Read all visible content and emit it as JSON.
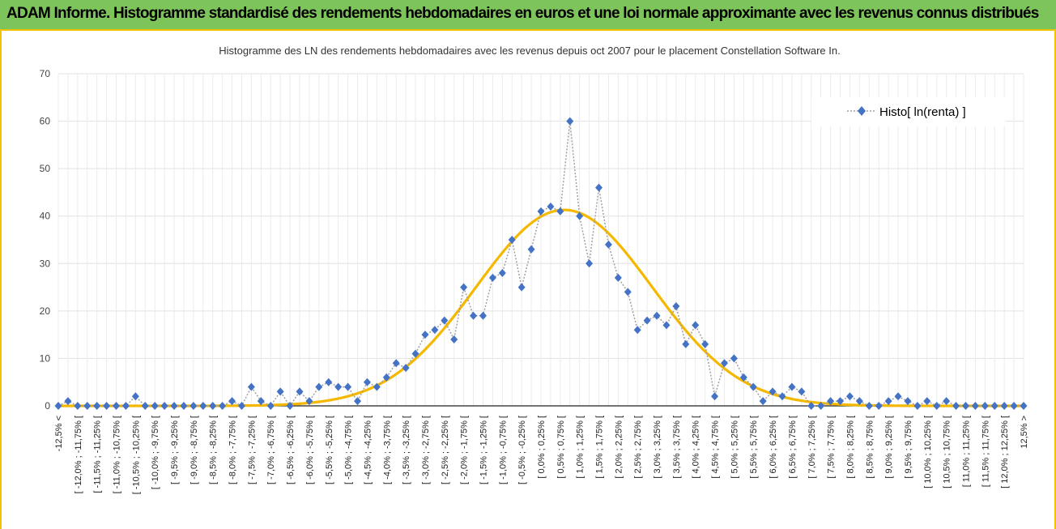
{
  "banner": {
    "title": "ADAM Informe. Histogramme standardisé des rendements hebdomadaires en euros et une loi normale approximante avec les revenus connus distribués",
    "color": "#7dc45a"
  },
  "chart_data": {
    "type": "line",
    "title": "Histogramme des LN des rendements hebdomadaires avec les revenus depuis oct 2007 pour le placement Constellation Software In.",
    "xlabel": "",
    "ylabel": "",
    "ylim": [
      0,
      70
    ],
    "yticks": [
      0,
      10,
      20,
      30,
      40,
      50,
      60,
      70
    ],
    "grid": true,
    "legend_position": "top-right",
    "categories": [
      "-12,5% <",
      "[ -12,25% ; -12,0% [",
      "[ -12,0% ; -11,75% [",
      "[ -11,75% ; -11,5% [",
      "[ -11,5% ; -11,25% [",
      "[ -11,25% ; -11,0% [",
      "[ -11,0% ; -10,75% [",
      "[ -10,75% ; -10,5% [",
      "[ -10,5% ; -10,25% [",
      "[ -10,25% ; -10,0% [",
      "[ -10,0% ; -9,75% [",
      "[ -9,75% ; -9,5% [",
      "[ -9,5% ; -9,25% [",
      "[ -9,25% ; -9,0% [",
      "[ -9,0% ; -8,75% [",
      "[ -8,75% ; -8,5% [",
      "[ -8,5% ; -8,25% [",
      "[ -8,25% ; -8,0% [",
      "[ -8,0% ; -7,75% [",
      "[ -7,75% ; -7,5% [",
      "[ -7,5% ; -7,25% [",
      "[ -7,25% ; -7,0% [",
      "[ -7,0% ; -6,75% [",
      "[ -6,75% ; -6,5% [",
      "[ -6,5% ; -6,25% [",
      "[ -6,25% ; -6,0% [",
      "[ -6,0% ; -5,75% [",
      "[ -5,75% ; -5,5% [",
      "[ -5,5% ; -5,25% [",
      "[ -5,25% ; -5,0% [",
      "[ -5,0% ; -4,75% [",
      "[ -4,75% ; -4,5% [",
      "[ -4,5% ; -4,25% [",
      "[ -4,25% ; -4,0% [",
      "[ -4,0% ; -3,75% [",
      "[ -3,75% ; -3,5% [",
      "[ -3,5% ; -3,25% [",
      "[ -3,25% ; -3,0% [",
      "[ -3,0% ; -2,75% [",
      "[ -2,75% ; -2,5% [",
      "[ -2,5% ; -2,25% [",
      "[ -2,25% ; -2,0% [",
      "[ -2,0% ; -1,75% [",
      "[ -1,75% ; -1,5% [",
      "[ -1,5% ; -1,25% [",
      "[ -1,25% ; -1,0% [",
      "[ -1,0% ; -0,75% [",
      "[ -0,75% ; -0,5% [",
      "[ -0,5% ; -0,25% [",
      "[ -0,25% ; 0,0% [",
      "[ 0,0% ; 0,25% [",
      "[ 0,25% ; 0,5% [",
      "[ 0,5% ; 0,75% [",
      "[ 0,75% ; 1,0% [",
      "[ 1,0% ; 1,25% [",
      "[ 1,25% ; 1,5% [",
      "[ 1,5% ; 1,75% [",
      "[ 1,75% ; 2,0% [",
      "[ 2,0% ; 2,25% [",
      "[ 2,25% ; 2,5% [",
      "[ 2,5% ; 2,75% [",
      "[ 2,75% ; 3,0% [",
      "[ 3,0% ; 3,25% [",
      "[ 3,25% ; 3,5% [",
      "[ 3,5% ; 3,75% [",
      "[ 3,75% ; 4,0% [",
      "[ 4,0% ; 4,25% [",
      "[ 4,25% ; 4,5% [",
      "[ 4,5% ; 4,75% [",
      "[ 4,75% ; 5,0% [",
      "[ 5,0% ; 5,25% [",
      "[ 5,25% ; 5,5% [",
      "[ 5,5% ; 5,75% [",
      "[ 5,75% ; 6,0% [",
      "[ 6,0% ; 6,25% [",
      "[ 6,25% ; 6,5% [",
      "[ 6,5% ; 6,75% [",
      "[ 6,75% ; 7,0% [",
      "[ 7,0% ; 7,25% [",
      "[ 7,25% ; 7,5% [",
      "[ 7,5% ; 7,75% [",
      "[ 7,75% ; 8,0% [",
      "[ 8,0% ; 8,25% [",
      "[ 8,25% ; 8,5% [",
      "[ 8,5% ; 8,75% [",
      "[ 8,75% ; 9,0% [",
      "[ 9,0% ; 9,25% [",
      "[ 9,25% ; 9,5% [",
      "[ 9,5% ; 9,75% [",
      "[ 9,75% ; 10,0% [",
      "[ 10,0% ; 10,25% [",
      "[ 10,25% ; 10,5% [",
      "[ 10,5% ; 10,75% [",
      "[ 10,75% ; 11,0% [",
      "[ 11,0% ; 11,25% [",
      "[ 11,25% ; 11,5% [",
      "[ 11,5% ; 11,75% [",
      "[ 11,75% ; 12,0% [",
      "[ 12,0% ; 12,25% [",
      "[ 12,25% ; 12,5% [",
      "12,5% >"
    ],
    "series": [
      {
        "name": "Histo[ ln(renta) ]",
        "color": "#4472c4",
        "marker": "diamond",
        "line_style": "dotted",
        "values": [
          0,
          1,
          0,
          0,
          0,
          0,
          0,
          0,
          2,
          0,
          0,
          0,
          0,
          0,
          0,
          0,
          0,
          0,
          1,
          0,
          4,
          1,
          0,
          3,
          0,
          3,
          1,
          4,
          5,
          4,
          4,
          1,
          5,
          4,
          6,
          9,
          8,
          11,
          15,
          16,
          18,
          14,
          25,
          19,
          19,
          27,
          28,
          35,
          25,
          33,
          41,
          42,
          41,
          60,
          40,
          30,
          46,
          34,
          27,
          24,
          16,
          18,
          19,
          17,
          21,
          13,
          17,
          13,
          2,
          9,
          10,
          6,
          4,
          1,
          3,
          2,
          4,
          3,
          0,
          0,
          1,
          1,
          2,
          1,
          0,
          0,
          1,
          2,
          1,
          0,
          1,
          0,
          1,
          0,
          0,
          0,
          0,
          0,
          0,
          0,
          0
        ]
      },
      {
        "name": "",
        "color": "#f5b800",
        "style": "smooth-line",
        "normal_fit": {
          "mean_pct": 0.6,
          "sd_pct": 2.28,
          "peak": 41.3
        }
      }
    ]
  }
}
